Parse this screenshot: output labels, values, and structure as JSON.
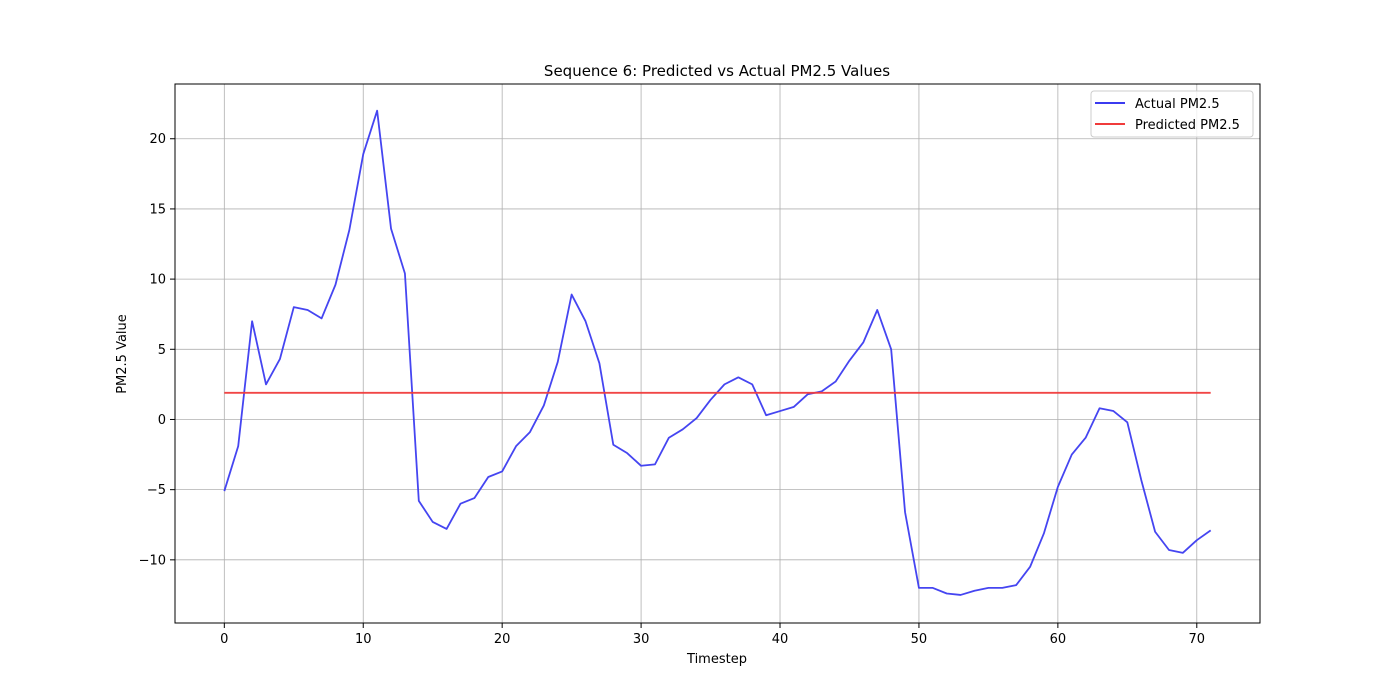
{
  "chart_data": {
    "type": "line",
    "title": "Sequence 6: Predicted vs Actual PM2.5 Values",
    "xlabel": "Timestep",
    "ylabel": "PM2.5 Value",
    "xlim": [
      -3.55,
      74.55
    ],
    "ylim": [
      -14.5,
      23.9
    ],
    "xticks": [
      0,
      10,
      20,
      30,
      40,
      50,
      60,
      70
    ],
    "yticks": [
      -10,
      -5,
      0,
      5,
      10,
      15,
      20
    ],
    "grid": true,
    "legend_position": "top-right",
    "series": [
      {
        "name": "Actual PM2.5",
        "color": "#3b3bf0",
        "x": [
          0,
          1,
          2,
          3,
          4,
          5,
          6,
          7,
          8,
          9,
          10,
          11,
          12,
          13,
          14,
          15,
          16,
          17,
          18,
          19,
          20,
          21,
          22,
          23,
          24,
          25,
          26,
          27,
          28,
          29,
          30,
          31,
          32,
          33,
          34,
          35,
          36,
          37,
          38,
          39,
          40,
          41,
          42,
          43,
          44,
          45,
          46,
          47,
          48,
          49,
          50,
          51,
          52,
          53,
          54,
          55,
          56,
          57,
          58,
          59,
          60,
          61,
          62,
          63,
          64,
          65,
          66,
          67,
          68,
          69,
          70,
          71
        ],
        "values": [
          -5.1,
          -1.9,
          7.0,
          2.5,
          4.3,
          8.0,
          7.8,
          7.2,
          9.6,
          13.5,
          18.9,
          22.0,
          13.6,
          10.4,
          -5.8,
          -7.3,
          -7.8,
          -6.0,
          -5.6,
          -4.1,
          -3.7,
          -1.9,
          -0.9,
          1.0,
          4.1,
          8.9,
          7.0,
          4.0,
          -1.8,
          -2.4,
          -3.3,
          -3.2,
          -1.3,
          -0.7,
          0.1,
          1.4,
          2.5,
          3.0,
          2.5,
          0.3,
          0.6,
          0.9,
          1.8,
          2.0,
          2.7,
          4.2,
          5.5,
          7.8,
          5.0,
          -6.6,
          -12.0,
          -12.0,
          -12.4,
          -12.5,
          -12.2,
          -12.0,
          -12.0,
          -11.8,
          -10.5,
          -8.1,
          -4.8,
          -2.5,
          -1.3,
          0.8,
          0.6,
          -0.2,
          -4.3,
          -8.0,
          -9.3,
          -9.5,
          -8.6,
          -7.9
        ]
      },
      {
        "name": "Predicted PM2.5",
        "color": "#f03b3b",
        "x": [
          0,
          71
        ],
        "values": [
          1.9,
          1.9
        ]
      }
    ]
  }
}
